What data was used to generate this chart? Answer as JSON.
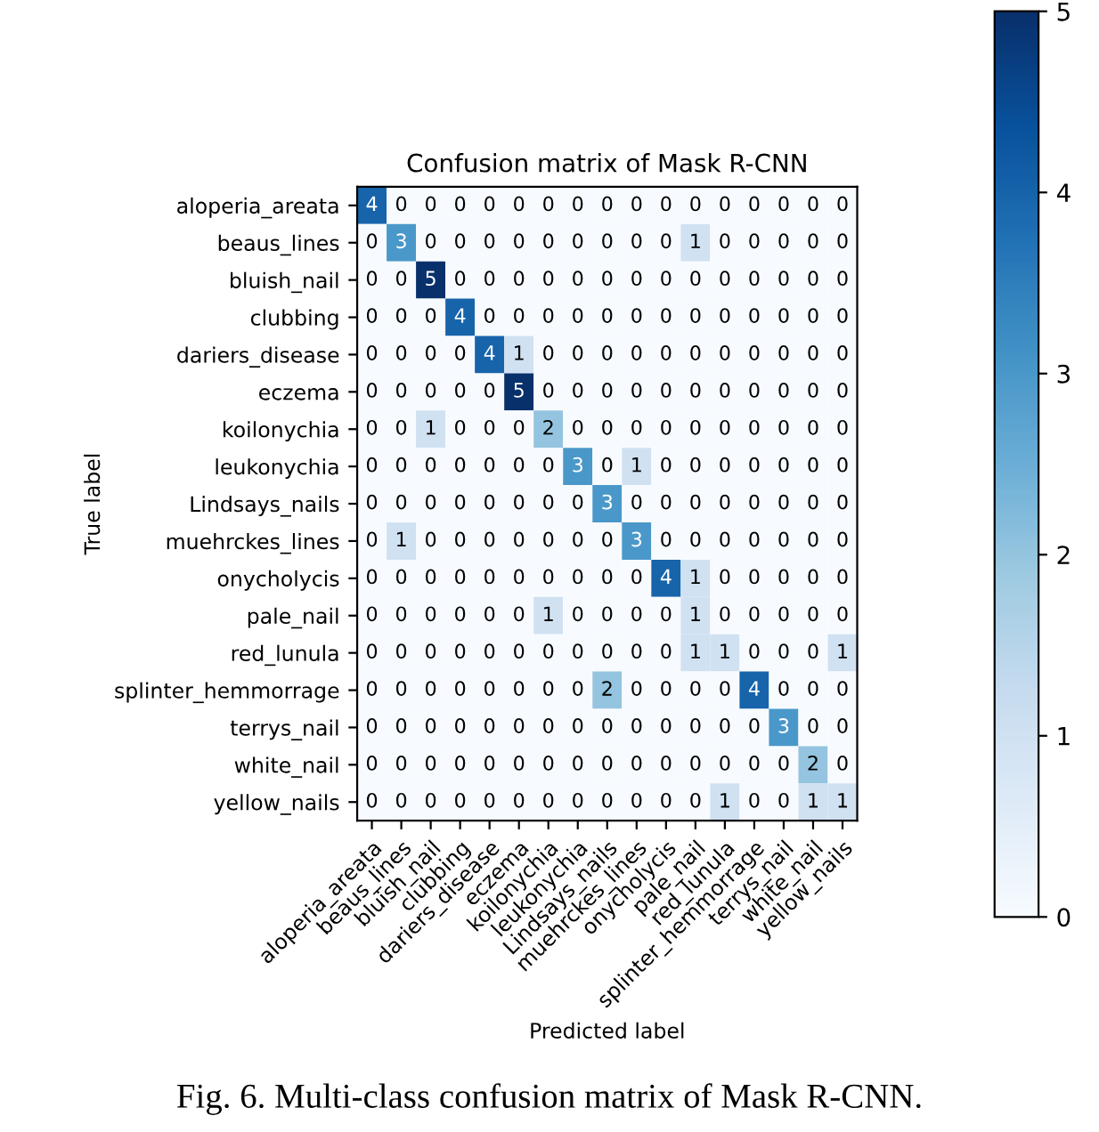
{
  "chart_data": {
    "type": "heatmap",
    "title": "Confusion matrix of Mask R-CNN",
    "xlabel": "Predicted label",
    "ylabel": "True label",
    "categories": [
      "aloperia_areata",
      "beaus_lines",
      "bluish_nail",
      "clubbing",
      "dariers_disease",
      "eczema",
      "koilonychia",
      "leukonychia",
      "Lindsays_nails",
      "muehrckes_lines",
      "onycholycis",
      "pale_nail",
      "red_lunula",
      "splinter_hemmorrage",
      "terrys_nail",
      "white_nail",
      "yellow_nails"
    ],
    "y_categories": [
      "aloperia_areata",
      "beaus_lines",
      "bluish_nail",
      "clubbing",
      "dariers_disease",
      "eczema",
      "koilonychia",
      "leukonychia",
      "Lindsays_nails",
      "muehrckes_lines",
      "onycholycis",
      "pale_nail",
      "red_lunula",
      "splinter_hemmorrage",
      "terrys_nail",
      "white_nail",
      "yellow_nails"
    ],
    "cells": [
      [
        4,
        0,
        0,
        0,
        0,
        0,
        0,
        0,
        0,
        0,
        0,
        0,
        0,
        0,
        0,
        0,
        0
      ],
      [
        0,
        3,
        0,
        0,
        0,
        0,
        0,
        0,
        0,
        0,
        0,
        1,
        0,
        0,
        0,
        0,
        0
      ],
      [
        0,
        0,
        5,
        0,
        0,
        0,
        0,
        0,
        0,
        0,
        0,
        0,
        0,
        0,
        0,
        0,
        0
      ],
      [
        0,
        0,
        0,
        4,
        0,
        0,
        0,
        0,
        0,
        0,
        0,
        0,
        0,
        0,
        0,
        0,
        0
      ],
      [
        0,
        0,
        0,
        0,
        4,
        1,
        0,
        0,
        0,
        0,
        0,
        0,
        0,
        0,
        0,
        0,
        0
      ],
      [
        0,
        0,
        0,
        0,
        0,
        5,
        0,
        0,
        0,
        0,
        0,
        0,
        0,
        0,
        0,
        0,
        0
      ],
      [
        0,
        0,
        1,
        0,
        0,
        0,
        2,
        0,
        0,
        0,
        0,
        0,
        0,
        0,
        0,
        0,
        0
      ],
      [
        0,
        0,
        0,
        0,
        0,
        0,
        0,
        3,
        0,
        1,
        0,
        0,
        0,
        0,
        0,
        0,
        0
      ],
      [
        0,
        0,
        0,
        0,
        0,
        0,
        0,
        0,
        3,
        0,
        0,
        0,
        0,
        0,
        0,
        0,
        0
      ],
      [
        0,
        1,
        0,
        0,
        0,
        0,
        0,
        0,
        0,
        3,
        0,
        0,
        0,
        0,
        0,
        0,
        0
      ],
      [
        0,
        0,
        0,
        0,
        0,
        0,
        0,
        0,
        0,
        0,
        4,
        1,
        0,
        0,
        0,
        0,
        0
      ],
      [
        0,
        0,
        0,
        0,
        0,
        0,
        1,
        0,
        0,
        0,
        0,
        1,
        0,
        0,
        0,
        0,
        0
      ],
      [
        0,
        0,
        0,
        0,
        0,
        0,
        0,
        0,
        0,
        0,
        0,
        1,
        1,
        0,
        0,
        0,
        1
      ],
      [
        0,
        0,
        0,
        0,
        0,
        0,
        0,
        0,
        2,
        0,
        0,
        0,
        0,
        4,
        0,
        0,
        0
      ],
      [
        0,
        0,
        0,
        0,
        0,
        0,
        0,
        0,
        0,
        0,
        0,
        0,
        0,
        0,
        3,
        0,
        0
      ],
      [
        0,
        0,
        0,
        0,
        0,
        0,
        0,
        0,
        0,
        0,
        0,
        0,
        0,
        0,
        0,
        2,
        0
      ],
      [
        0,
        0,
        0,
        0,
        0,
        0,
        0,
        0,
        0,
        0,
        0,
        0,
        1,
        0,
        0,
        1,
        1
      ]
    ],
    "data_labels": true,
    "clim": [
      0,
      5
    ],
    "cticks": [
      0,
      1,
      2,
      3,
      4,
      5
    ],
    "grid": false,
    "annotations": [
      "Fig. 6. Multi-class confusion matrix of Mask R-CNN."
    ]
  }
}
